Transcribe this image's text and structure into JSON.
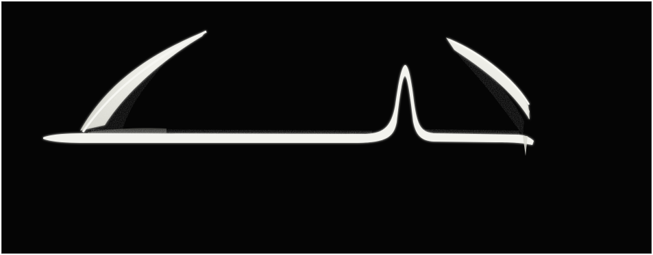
{
  "image": {
    "subject": "oscilloscope-trace-photograph",
    "colors": {
      "background": "#050505",
      "trace": "#f2f2ee",
      "trace_dim": "#bdbdb5"
    }
  }
}
